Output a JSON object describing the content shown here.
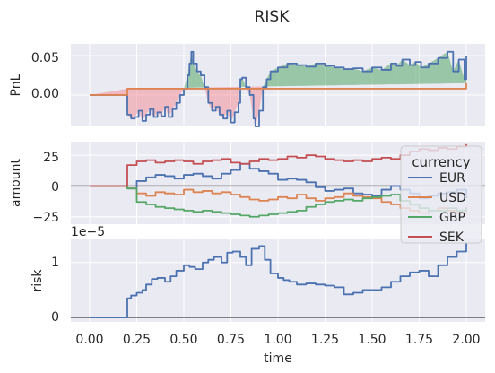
{
  "chart_data": [
    {
      "id": "pnl",
      "type": "line",
      "suptitle": "RISK",
      "ylabel": "PnL",
      "xlim": [
        -0.1,
        2.1
      ],
      "ylim": [
        -0.04,
        0.065
      ],
      "yticks": [
        0.0,
        0.05
      ],
      "ytick_labels": [
        "0.00",
        "0.05"
      ],
      "grid": true,
      "series": [
        {
          "key": "pnl",
          "color": "#4c72b0",
          "x": [
            0.0,
            0.19,
            0.2,
            0.22,
            0.24,
            0.26,
            0.28,
            0.3,
            0.32,
            0.34,
            0.36,
            0.38,
            0.4,
            0.42,
            0.44,
            0.46,
            0.48,
            0.5,
            0.52,
            0.53,
            0.54,
            0.55,
            0.57,
            0.59,
            0.61,
            0.63,
            0.65,
            0.67,
            0.69,
            0.71,
            0.73,
            0.75,
            0.77,
            0.79,
            0.8,
            0.81,
            0.83,
            0.85,
            0.87,
            0.88,
            0.9,
            0.92,
            0.94,
            0.96,
            1.0,
            1.05,
            1.1,
            1.15,
            1.2,
            1.25,
            1.3,
            1.35,
            1.4,
            1.45,
            1.5,
            1.55,
            1.6,
            1.63,
            1.66,
            1.7,
            1.73,
            1.76,
            1.8,
            1.85,
            1.9,
            1.93,
            1.96,
            1.99,
            2.0
          ],
          "y": [
            0.0,
            0.0,
            -0.025,
            -0.03,
            -0.028,
            -0.02,
            -0.033,
            -0.025,
            -0.018,
            -0.028,
            -0.022,
            -0.027,
            -0.015,
            -0.028,
            -0.018,
            -0.01,
            0.0,
            0.008,
            0.025,
            0.04,
            0.055,
            0.04,
            0.03,
            0.025,
            0.01,
            -0.01,
            -0.02,
            -0.015,
            -0.025,
            -0.03,
            -0.02,
            -0.035,
            -0.022,
            -0.01,
            0.02,
            0.022,
            0.01,
            0.0,
            -0.03,
            -0.04,
            -0.02,
            0.01,
            0.02,
            0.03,
            0.035,
            0.04,
            0.038,
            0.036,
            0.04,
            0.037,
            0.035,
            0.033,
            0.034,
            0.03,
            0.035,
            0.032,
            0.04,
            0.037,
            0.045,
            0.038,
            0.042,
            0.035,
            0.04,
            0.047,
            0.055,
            0.03,
            0.045,
            0.02,
            0.05
          ]
        },
        {
          "key": "bench",
          "color": "#dd8452",
          "x": [
            0.0,
            0.2,
            2.0
          ],
          "y": [
            0.0,
            0.008,
            0.015
          ]
        }
      ],
      "fill_above_color": "#55a868",
      "fill_below_color": "#f28f9a"
    },
    {
      "id": "amount",
      "type": "line",
      "ylabel": "amount",
      "xlim": [
        -0.1,
        2.1
      ],
      "ylim": [
        -31,
        36
      ],
      "yticks": [
        -25,
        0,
        25
      ],
      "ytick_labels": [
        "−25",
        "0",
        "25"
      ],
      "hline": 0,
      "grid": true,
      "legend": {
        "title": "currency",
        "placement": "right",
        "entries": [
          "EUR",
          "USD",
          "GBP",
          "SEK"
        ]
      },
      "series": [
        {
          "name": "EUR",
          "color": "#4c72b0",
          "x": [
            0.0,
            0.19,
            0.2,
            0.25,
            0.3,
            0.35,
            0.4,
            0.45,
            0.5,
            0.55,
            0.6,
            0.65,
            0.7,
            0.75,
            0.8,
            0.85,
            0.9,
            0.95,
            1.0,
            1.05,
            1.1,
            1.15,
            1.2,
            1.25,
            1.3,
            1.35,
            1.4,
            1.45,
            1.5,
            1.55,
            1.6,
            1.65,
            1.7,
            1.75,
            1.8,
            1.85,
            1.9,
            1.95,
            2.0
          ],
          "y": [
            0,
            0,
            -2,
            4,
            7,
            9,
            8,
            6,
            9,
            10,
            8,
            6,
            10,
            13,
            18,
            14,
            12,
            10,
            5,
            6,
            5,
            3,
            -1,
            -4,
            -3,
            -2,
            -6,
            -7,
            -8,
            -3,
            0,
            -3,
            -6,
            -10,
            -8,
            -6,
            -5,
            -3,
            -10
          ]
        },
        {
          "name": "USD",
          "color": "#dd8452",
          "x": [
            0.0,
            0.19,
            0.2,
            0.25,
            0.3,
            0.35,
            0.4,
            0.45,
            0.5,
            0.55,
            0.6,
            0.65,
            0.7,
            0.75,
            0.8,
            0.85,
            0.9,
            0.95,
            1.0,
            1.05,
            1.1,
            1.15,
            1.2,
            1.25,
            1.3,
            1.35,
            1.4,
            1.45,
            1.5,
            1.55,
            1.6,
            1.65,
            1.7,
            1.75,
            1.8,
            1.85,
            1.9,
            1.95,
            2.0
          ],
          "y": [
            0,
            0,
            -2,
            -6,
            -8,
            -5,
            -6,
            -7,
            -3,
            -5,
            -4,
            -6,
            -5,
            -7,
            -9,
            -11,
            -12,
            -11,
            -9,
            -10,
            -7,
            -10,
            -12,
            -10,
            -9,
            -6,
            -8,
            -9,
            -10,
            -13,
            -15,
            -18,
            -20,
            -22,
            -20,
            -18,
            -20,
            -22,
            -17
          ]
        },
        {
          "name": "GBP",
          "color": "#55a868",
          "x": [
            0.0,
            0.19,
            0.2,
            0.25,
            0.3,
            0.35,
            0.4,
            0.45,
            0.5,
            0.55,
            0.6,
            0.65,
            0.7,
            0.75,
            0.8,
            0.85,
            0.9,
            0.95,
            1.0,
            1.05,
            1.1,
            1.15,
            1.2,
            1.25,
            1.3,
            1.35,
            1.4,
            1.45,
            1.5,
            1.55,
            1.6,
            1.65,
            1.7,
            1.75,
            1.8,
            1.85,
            1.9,
            1.95,
            2.0
          ],
          "y": [
            0,
            0,
            -2,
            -13,
            -15,
            -17,
            -18,
            -19,
            -20,
            -21,
            -20,
            -21,
            -22,
            -23,
            -24,
            -25,
            -24,
            -23,
            -22,
            -21,
            -20,
            -17,
            -15,
            -13,
            -12,
            -11,
            -12,
            -10,
            -9,
            -8,
            -7,
            -12,
            -15,
            -18,
            -20,
            -20,
            -18,
            -20,
            -18
          ]
        },
        {
          "name": "SEK",
          "color": "#c44e52",
          "x": [
            0.0,
            0.19,
            0.2,
            0.25,
            0.3,
            0.35,
            0.4,
            0.45,
            0.5,
            0.55,
            0.6,
            0.65,
            0.7,
            0.75,
            0.8,
            0.85,
            0.9,
            0.95,
            1.0,
            1.05,
            1.1,
            1.15,
            1.2,
            1.25,
            1.3,
            1.35,
            1.4,
            1.45,
            1.5,
            1.55,
            1.6,
            1.65,
            1.7,
            1.75,
            1.8,
            1.85,
            1.9,
            1.95,
            2.0
          ],
          "y": [
            0,
            0,
            17,
            20,
            21,
            19,
            20,
            21,
            20,
            18,
            20,
            21,
            22,
            19,
            18,
            20,
            22,
            21,
            22,
            24,
            23,
            25,
            24,
            22,
            21,
            20,
            21,
            20,
            22,
            23,
            22,
            25,
            28,
            30,
            29,
            31,
            30,
            32,
            34
          ]
        }
      ]
    },
    {
      "id": "risk",
      "type": "line",
      "ylabel": "risk",
      "xlabel": "time",
      "offset_label": "1e−5",
      "xlim": [
        -0.1,
        2.1
      ],
      "ylim": [
        -0.08,
        1.42
      ],
      "yticks": [
        0,
        1
      ],
      "ytick_labels": [
        "0",
        "1"
      ],
      "xticks": [
        0.0,
        0.25,
        0.5,
        0.75,
        1.0,
        1.25,
        1.5,
        1.75,
        2.0
      ],
      "xtick_labels": [
        "0.00",
        "0.25",
        "0.50",
        "0.75",
        "1.00",
        "1.25",
        "1.50",
        "1.75",
        "2.00"
      ],
      "hline": 0,
      "grid": true,
      "series": [
        {
          "key": "risk",
          "color": "#4c72b0",
          "x": [
            0.0,
            0.2,
            0.2,
            0.22,
            0.25,
            0.28,
            0.3,
            0.33,
            0.36,
            0.4,
            0.43,
            0.46,
            0.5,
            0.53,
            0.56,
            0.6,
            0.63,
            0.66,
            0.7,
            0.73,
            0.76,
            0.8,
            0.83,
            0.86,
            0.9,
            0.93,
            0.96,
            1.0,
            1.03,
            1.06,
            1.1,
            1.15,
            1.2,
            1.25,
            1.3,
            1.35,
            1.4,
            1.45,
            1.5,
            1.55,
            1.6,
            1.65,
            1.7,
            1.75,
            1.8,
            1.85,
            1.9,
            1.95,
            2.0
          ],
          "y": [
            0,
            0,
            0.35,
            0.4,
            0.45,
            0.5,
            0.6,
            0.7,
            0.72,
            0.65,
            0.75,
            0.85,
            0.95,
            0.92,
            0.88,
            1.0,
            1.05,
            1.1,
            1.0,
            1.18,
            1.2,
            1.1,
            0.95,
            1.25,
            1.3,
            1.05,
            0.8,
            0.72,
            0.68,
            0.65,
            0.6,
            0.62,
            0.6,
            0.58,
            0.55,
            0.42,
            0.45,
            0.5,
            0.5,
            0.55,
            0.65,
            0.75,
            0.82,
            0.85,
            0.75,
            0.95,
            1.1,
            1.2,
            1.35
          ]
        }
      ]
    }
  ]
}
